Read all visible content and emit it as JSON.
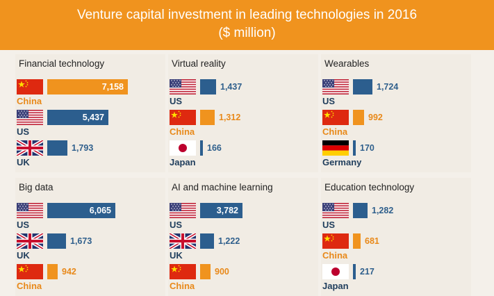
{
  "title_line1": "Venture capital investment in leading technologies in 2016",
  "title_line2": "($ million)",
  "colors": {
    "header": "#f0931e",
    "China": "#f0931e",
    "US": "#2c5e8e",
    "UK": "#2c5e8e",
    "Japan": "#2c5e8e",
    "Germany": "#2c5e8e"
  },
  "chart_data": {
    "type": "bar",
    "unit": "$ million",
    "max_value": 7158,
    "panels": [
      {
        "title": "Financial technology",
        "bars": [
          {
            "country": "China",
            "value": 7158,
            "label": "7,158"
          },
          {
            "country": "US",
            "value": 5437,
            "label": "5,437"
          },
          {
            "country": "UK",
            "value": 1793,
            "label": "1,793"
          }
        ]
      },
      {
        "title": "Virtual reality",
        "bars": [
          {
            "country": "US",
            "value": 1437,
            "label": "1,437"
          },
          {
            "country": "China",
            "value": 1312,
            "label": "1,312"
          },
          {
            "country": "Japan",
            "value": 166,
            "label": "166"
          }
        ]
      },
      {
        "title": "Wearables",
        "bars": [
          {
            "country": "US",
            "value": 1724,
            "label": "1,724"
          },
          {
            "country": "China",
            "value": 992,
            "label": "992"
          },
          {
            "country": "Germany",
            "value": 170,
            "label": "170"
          }
        ]
      },
      {
        "title": "Big data",
        "bars": [
          {
            "country": "US",
            "value": 6065,
            "label": "6,065"
          },
          {
            "country": "UK",
            "value": 1673,
            "label": "1,673"
          },
          {
            "country": "China",
            "value": 942,
            "label": "942"
          }
        ]
      },
      {
        "title": "AI and machine learning",
        "bars": [
          {
            "country": "US",
            "value": 3782,
            "label": "3,782"
          },
          {
            "country": "UK",
            "value": 1222,
            "label": "1,222"
          },
          {
            "country": "China",
            "value": 900,
            "label": "900"
          }
        ]
      },
      {
        "title": "Education technology",
        "bars": [
          {
            "country": "US",
            "value": 1282,
            "label": "1,282"
          },
          {
            "country": "China",
            "value": 681,
            "label": "681"
          },
          {
            "country": "Japan",
            "value": 217,
            "label": "217"
          }
        ]
      }
    ]
  }
}
